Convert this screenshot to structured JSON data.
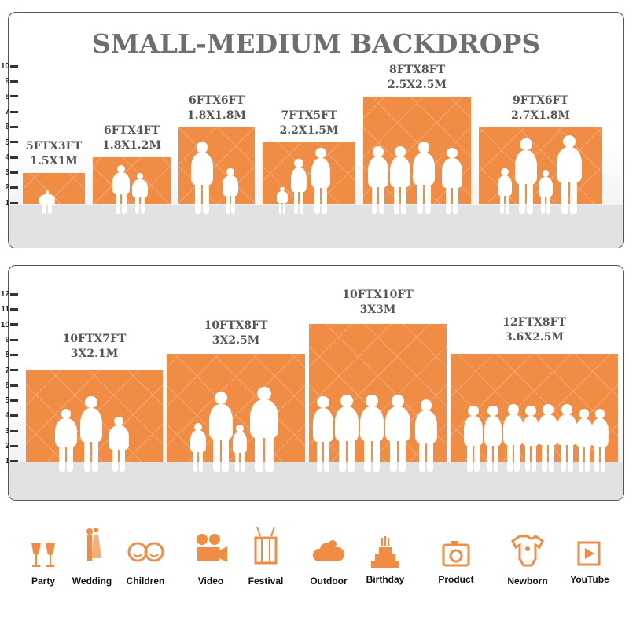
{
  "top_panel": {
    "title": "SMALL-MEDIUM BACKDROPS",
    "scale_ticks": [
      "10",
      "9",
      "8",
      "7",
      "6",
      "5",
      "4",
      "3",
      "2",
      "1"
    ],
    "backdrops": [
      {
        "size_ft": "5FTX3FT",
        "size_m": "1.5X1M"
      },
      {
        "size_ft": "6FTX4FT",
        "size_m": "1.8X1.2M"
      },
      {
        "size_ft": "6FTX6FT",
        "size_m": "1.8X1.8M"
      },
      {
        "size_ft": "7FTX5FT",
        "size_m": "2.2X1.5M"
      },
      {
        "size_ft": "8FTX8FT",
        "size_m": "2.5X2.5M"
      },
      {
        "size_ft": "9FTX6FT",
        "size_m": "2.7X1.8M"
      }
    ]
  },
  "bottom_panel": {
    "scale_ticks": [
      "12",
      "11",
      "10",
      "9",
      "8",
      "7",
      "6",
      "5",
      "4",
      "3",
      "2",
      "1"
    ],
    "backdrops": [
      {
        "size_ft": "10FTX7FT",
        "size_m": "3X2.1M"
      },
      {
        "size_ft": "10FTX8FT",
        "size_m": "3X2.5M"
      },
      {
        "size_ft": "10FTX10FT",
        "size_m": "3X3M"
      },
      {
        "size_ft": "12FTX8FT",
        "size_m": "3.6X2.5M"
      }
    ]
  },
  "uses": [
    {
      "label": "Party",
      "icon": "champagne-glasses-icon"
    },
    {
      "label": "Wedding",
      "icon": "wedding-couple-icon"
    },
    {
      "label": "Children",
      "icon": "children-faces-icon"
    },
    {
      "label": "Video",
      "icon": "film-camera-icon"
    },
    {
      "label": "Festival",
      "icon": "gift-box-icon"
    },
    {
      "label": "Outdoor",
      "icon": "cloud-icon"
    },
    {
      "label": "Birthday",
      "icon": "birthday-cake-icon"
    },
    {
      "label": "Product",
      "icon": "camera-icon"
    },
    {
      "label": "Newborn",
      "icon": "baby-onesie-icon"
    },
    {
      "label": "YouTube",
      "icon": "play-button-icon"
    }
  ],
  "colors": {
    "accent": "#f08c44",
    "title_gray": "#6e6e6e",
    "floor": "#e2e2e2"
  }
}
